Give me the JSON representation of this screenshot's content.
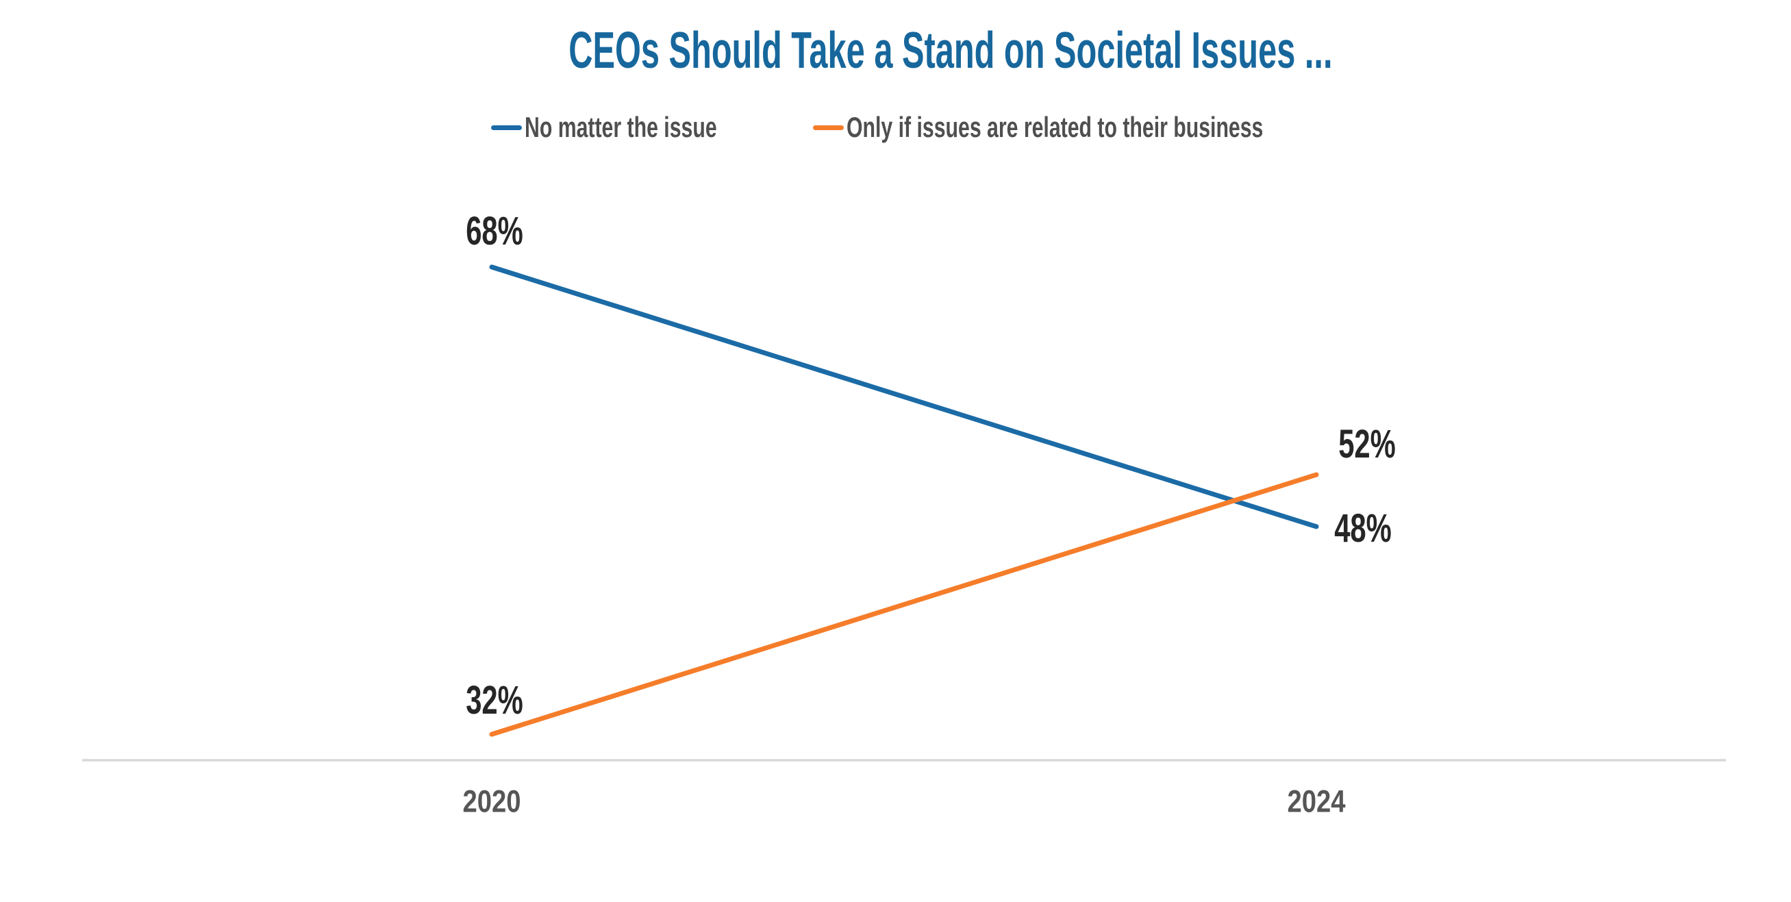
{
  "chart": {
    "title": "CEOs Should Take a Stand on Societal Issues ..."
  },
  "chart_data": {
    "type": "line",
    "title": "CEOs Should Take a Stand on Societal Issues ...",
    "categories": [
      "2020",
      "2024"
    ],
    "series": [
      {
        "name": "No matter the issue",
        "color": "#1b6ba6",
        "values": [
          68,
          48
        ],
        "point_labels": [
          "68%",
          "48%"
        ]
      },
      {
        "name": "Only if issues are related to their business",
        "color": "#f57d2a",
        "values": [
          32,
          52
        ],
        "point_labels": [
          "32%",
          "52%"
        ]
      }
    ],
    "ylim": [
      30,
      70
    ],
    "xlabel": "",
    "ylabel": "",
    "grid": false,
    "legend_position": "top-center",
    "colors": {
      "title": "#17679c",
      "point_label": "#262626",
      "tick_label": "#565656",
      "legend_label": "#4f4f4f",
      "axis_line": "#d8d8d8",
      "background": "#ffffff"
    }
  }
}
